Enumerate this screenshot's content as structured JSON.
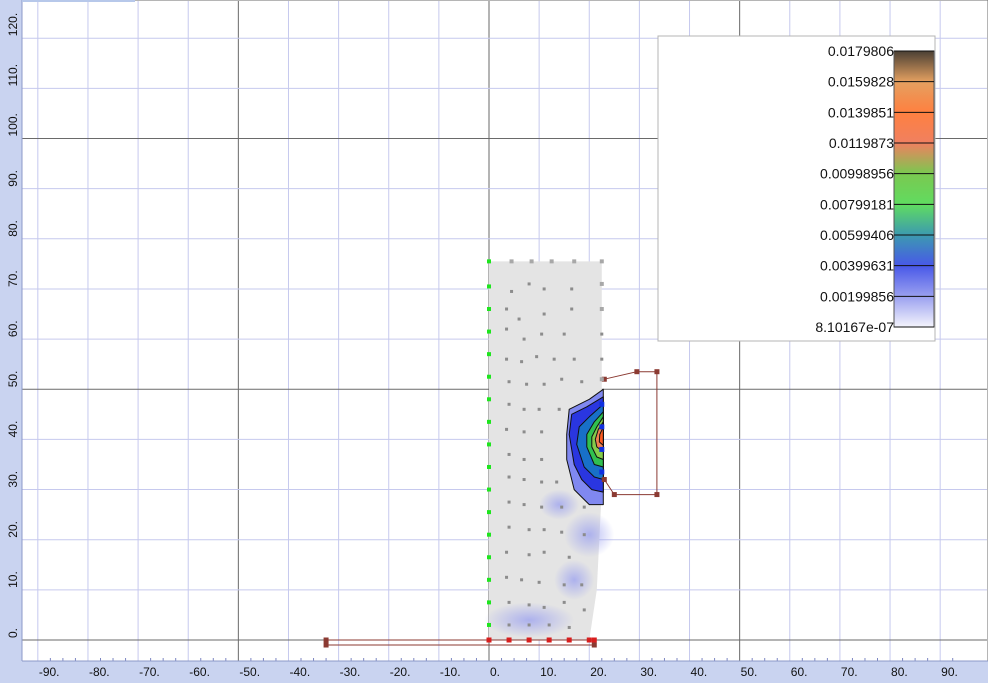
{
  "chart_data": {
    "type": "contour",
    "grid": true,
    "xlim": [
      -95,
      95
    ],
    "ylim": [
      -4,
      124
    ],
    "x_ticks": [
      "-90.",
      "-80.",
      "-70.",
      "-60.",
      "-50.",
      "-40.",
      "-30.",
      "-20.",
      "-10.",
      "0.",
      "10.",
      "20.",
      "30.",
      "40.",
      "50.",
      "60.",
      "70.",
      "80.",
      "90."
    ],
    "x_tick_values": [
      -90,
      -80,
      -70,
      -60,
      -50,
      -40,
      -30,
      -20,
      -10,
      0,
      10,
      20,
      30,
      40,
      50,
      60,
      70,
      80,
      90
    ],
    "y_ticks": [
      "0.",
      "10.",
      "20.",
      "30.",
      "40.",
      "50.",
      "60.",
      "70.",
      "80.",
      "90.",
      "100.",
      "110.",
      "120."
    ],
    "y_tick_values": [
      0,
      10,
      20,
      30,
      40,
      50,
      60,
      70,
      80,
      90,
      100,
      110,
      120
    ],
    "major_lines_x": [
      -50,
      0,
      50
    ],
    "major_lines_y": [
      0,
      50,
      100
    ],
    "legend": {
      "placement": "top-right",
      "levels": [
        "0.0179806",
        "0.0159828",
        "0.0139851",
        "0.0119873",
        "0.00998956",
        "0.00799181",
        "0.00599406",
        "0.00399631",
        "0.00199856",
        "8.10167e-07"
      ],
      "level_values": [
        0.0179806,
        0.0159828,
        0.0139851,
        0.0119873,
        0.00998956,
        0.00799181,
        0.00599406,
        0.00399631,
        0.00199856,
        8.10167e-07
      ],
      "colors": [
        "#4a4034",
        "#e4a060",
        "#ff8040",
        "#f08060",
        "#7bc850",
        "#60dc60",
        "#3c9ab0",
        "#4858e8",
        "#9aa0f0",
        "#f4f4fc"
      ]
    },
    "domain": {
      "polygon": [
        [
          0,
          75.5
        ],
        [
          22.5,
          75.5
        ],
        [
          22.5,
          30
        ],
        [
          21.5,
          10
        ],
        [
          20,
          0
        ],
        [
          0,
          0
        ]
      ],
      "fill": "#e4e4e4"
    },
    "interior_points": [
      [
        4.5,
        69.5
      ],
      [
        8,
        71
      ],
      [
        11,
        70
      ],
      [
        16.5,
        70
      ],
      [
        3.5,
        66
      ],
      [
        6,
        64
      ],
      [
        11,
        65
      ],
      [
        16.5,
        66
      ],
      [
        3.5,
        62
      ],
      [
        7,
        60
      ],
      [
        10.5,
        61
      ],
      [
        15,
        61
      ],
      [
        22.5,
        61
      ],
      [
        3.5,
        56
      ],
      [
        6.5,
        55.5
      ],
      [
        9.5,
        56.5
      ],
      [
        13,
        56
      ],
      [
        17,
        56
      ],
      [
        22.5,
        56
      ],
      [
        4,
        51.5
      ],
      [
        7.5,
        51
      ],
      [
        11,
        51
      ],
      [
        14.5,
        52
      ],
      [
        18.5,
        51.5
      ],
      [
        4,
        47
      ],
      [
        7,
        46
      ],
      [
        10,
        46
      ],
      [
        14,
        46
      ],
      [
        3.5,
        42
      ],
      [
        7,
        41.5
      ],
      [
        10.5,
        41.5
      ],
      [
        4,
        37
      ],
      [
        7,
        36
      ],
      [
        10.5,
        36
      ],
      [
        4,
        32.5
      ],
      [
        7,
        32
      ],
      [
        10.5,
        31.5
      ],
      [
        13.5,
        31.5
      ],
      [
        4,
        27.5
      ],
      [
        7,
        27
      ],
      [
        10.5,
        26.5
      ],
      [
        14.5,
        26.5
      ],
      [
        19,
        26.5
      ],
      [
        4,
        22.5
      ],
      [
        8,
        22
      ],
      [
        11,
        22
      ],
      [
        14.5,
        21.5
      ],
      [
        19,
        21
      ],
      [
        3.5,
        17.5
      ],
      [
        8,
        17
      ],
      [
        11,
        17.5
      ],
      [
        16,
        16.5
      ],
      [
        3.5,
        12.5
      ],
      [
        6.5,
        12
      ],
      [
        10,
        11.5
      ],
      [
        15,
        11
      ],
      [
        18.5,
        11
      ],
      [
        4,
        7.5
      ],
      [
        8,
        7
      ],
      [
        11,
        6.5
      ],
      [
        15,
        7.5
      ],
      [
        19,
        6
      ],
      [
        4,
        3
      ],
      [
        8,
        3
      ],
      [
        12,
        3
      ],
      [
        16,
        2.5
      ]
    ],
    "boundary_points_left": [
      [
        0,
        75.5
      ],
      [
        0,
        70.5
      ],
      [
        0,
        66
      ],
      [
        0,
        61.5
      ],
      [
        0,
        57
      ],
      [
        0,
        52.5
      ],
      [
        0,
        48
      ],
      [
        0,
        43.5
      ],
      [
        0,
        39
      ],
      [
        0,
        34.5
      ],
      [
        0,
        30
      ],
      [
        0,
        25.5
      ],
      [
        0,
        21
      ],
      [
        0,
        16.5
      ],
      [
        0,
        12
      ],
      [
        0,
        7.5
      ],
      [
        0,
        3
      ]
    ],
    "boundary_points_top": [
      [
        4.5,
        75.5
      ],
      [
        8.5,
        75.5
      ],
      [
        12.5,
        75.5
      ],
      [
        17,
        75.5
      ],
      [
        22.5,
        75.5
      ]
    ],
    "boundary_points_right_blue": [
      [
        22.5,
        47
      ],
      [
        22.5,
        42.5
      ],
      [
        22.5,
        38
      ],
      [
        22.5,
        33.5
      ]
    ],
    "bottom_electrodes": [
      [
        0,
        0
      ],
      [
        4,
        0
      ],
      [
        8,
        0
      ],
      [
        12,
        0
      ],
      [
        16,
        0
      ],
      [
        20,
        0
      ],
      [
        21,
        0
      ]
    ],
    "bottom_bar": [
      [
        -32.5,
        0
      ],
      [
        21,
        0
      ],
      [
        21,
        -1
      ],
      [
        -32.5,
        -1
      ]
    ],
    "right_outline": [
      [
        23,
        52
      ],
      [
        29.5,
        53.5
      ],
      [
        33.5,
        53.5
      ],
      [
        33.5,
        29
      ],
      [
        25,
        29
      ],
      [
        23,
        32
      ]
    ],
    "faint_regions": [
      {
        "center": [
          20,
          21
        ],
        "rx": 5,
        "ry": 4.5,
        "level": 0.00199856
      },
      {
        "center": [
          14,
          27
        ],
        "rx": 4,
        "ry": 3,
        "level": 0.00199856
      },
      {
        "center": [
          8,
          4
        ],
        "rx": 9,
        "ry": 3.5,
        "level": 0.00199856
      },
      {
        "center": [
          17,
          12
        ],
        "rx": 4,
        "ry": 4,
        "level": 0.00199856
      }
    ],
    "contours": [
      {
        "level": 0.00199856,
        "fill": "#8088f0",
        "polygon": [
          [
            22.8,
            50
          ],
          [
            20,
            48
          ],
          [
            16,
            46
          ],
          [
            15.5,
            41
          ],
          [
            15.5,
            36
          ],
          [
            17,
            30
          ],
          [
            17.5,
            29.5
          ],
          [
            20,
            27
          ],
          [
            22.8,
            27
          ]
        ]
      },
      {
        "level": 0.00399631,
        "fill": "#2a36e0",
        "polygon": [
          [
            22.8,
            48.5
          ],
          [
            19.5,
            46.5
          ],
          [
            16.5,
            45
          ],
          [
            16,
            41
          ],
          [
            17,
            35
          ],
          [
            18.5,
            32
          ],
          [
            20.5,
            30
          ],
          [
            22.8,
            29.5
          ]
        ]
      },
      {
        "level": 0.00599406,
        "fill": "#1870c8",
        "polygon": [
          [
            22.8,
            47
          ],
          [
            20,
            44.5
          ],
          [
            18,
            42.5
          ],
          [
            17.5,
            39
          ],
          [
            19,
            34.5
          ],
          [
            21,
            32.5
          ],
          [
            22.8,
            32
          ]
        ]
      },
      {
        "level": 0.00799181,
        "fill": "#30c050",
        "polygon": [
          [
            22.8,
            45.5
          ],
          [
            21,
            43.5
          ],
          [
            19.5,
            41
          ],
          [
            19.5,
            38.5
          ],
          [
            21,
            35
          ],
          [
            22.8,
            34.5
          ]
        ]
      },
      {
        "level": 0.00998956,
        "fill": "#84cc4a",
        "polygon": [
          [
            22.8,
            44.5
          ],
          [
            21.5,
            42.5
          ],
          [
            20.5,
            40.5
          ],
          [
            20.5,
            38.5
          ],
          [
            21.5,
            36.5
          ],
          [
            22.8,
            36
          ]
        ]
      },
      {
        "level": 0.0119873,
        "fill": "#ee8050",
        "polygon": [
          [
            22.8,
            43.5
          ],
          [
            21.8,
            42
          ],
          [
            21.2,
            40
          ],
          [
            21.5,
            38.5
          ],
          [
            22.8,
            37.5
          ]
        ]
      },
      {
        "level": 0.0139851,
        "fill": "#ff5a20",
        "polygon": [
          [
            22.8,
            42.5
          ],
          [
            22.1,
            41
          ],
          [
            22,
            39.5
          ],
          [
            22.8,
            38.8
          ]
        ]
      }
    ]
  }
}
